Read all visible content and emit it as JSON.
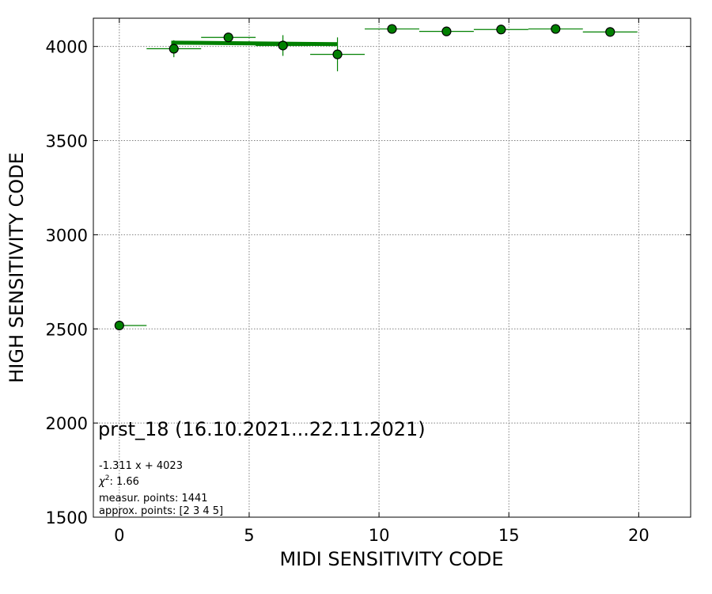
{
  "chart_data": {
    "type": "scatter",
    "xlabel": "MIDI SENSITIVITY CODE",
    "ylabel": "HIGH SENSITIVITY CODE",
    "xlim": [
      -1,
      22
    ],
    "ylim": [
      1500,
      4150
    ],
    "xticks": [
      0,
      5,
      10,
      15,
      20
    ],
    "yticks": [
      1500,
      2000,
      2500,
      3000,
      3500,
      4000
    ],
    "grid": true,
    "colors": {
      "points": "#008000",
      "edge": "#000000",
      "fit_line": "#008000",
      "grid": "#808080"
    },
    "points": [
      {
        "x": 0,
        "y": 2518,
        "xerr": [
          0,
          1.05
        ],
        "yerr": 0
      },
      {
        "x": 2.1,
        "y": 3988,
        "xerr": [
          1.05,
          1.05
        ],
        "yerr": 45
      },
      {
        "x": 4.2,
        "y": 4048,
        "xerr": [
          1.05,
          1.05
        ],
        "yerr": 0
      },
      {
        "x": 6.3,
        "y": 4005,
        "xerr": [
          1.05,
          1.05
        ],
        "yerr": 55
      },
      {
        "x": 8.4,
        "y": 3958,
        "xerr": [
          1.05,
          1.05
        ],
        "yerr": 90
      },
      {
        "x": 10.5,
        "y": 4093,
        "xerr": [
          1.05,
          1.05
        ],
        "yerr": 0
      },
      {
        "x": 12.6,
        "y": 4080,
        "xerr": [
          1.05,
          1.05
        ],
        "yerr": 0
      },
      {
        "x": 14.7,
        "y": 4090,
        "xerr": [
          1.05,
          1.05
        ],
        "yerr": 0
      },
      {
        "x": 16.8,
        "y": 4093,
        "xerr": [
          1.05,
          1.05
        ],
        "yerr": 0
      },
      {
        "x": 18.9,
        "y": 4077,
        "xerr": [
          1.05,
          1.05
        ],
        "yerr": 0
      }
    ],
    "fit": {
      "slope": -1.311,
      "intercept": 4023,
      "x_range": [
        2.0,
        8.4
      ]
    },
    "annotations": {
      "title": "prst_18 (16.10.2021...22.11.2021)",
      "equation": "-1.311 x + 4023",
      "chi2_symbol": "χ",
      "chi2_exp": "2",
      "chi2_value": ": 1.66",
      "measur_points": "measur. points: 1441",
      "approx_points": "approx. points: [2 3 4 5]"
    }
  }
}
